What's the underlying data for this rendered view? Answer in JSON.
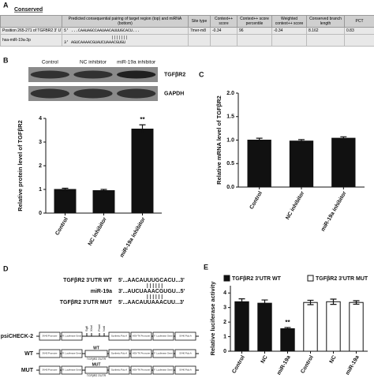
{
  "panel_a": {
    "label": "A",
    "title": "Conserved",
    "table": {
      "header": [
        "Predicted consequential pairing of target region (top) and miRNA (bottom)",
        "Site type",
        "Context++ score",
        "Context++ score percentile",
        "Weighted context++ score",
        "Conserved branch length",
        "PCT"
      ],
      "rows": [
        [
          "Position 265-271 of TGFBR2 3' UTR",
          "5' ...CAAUAGCCAAUAACAUUUGCACU...",
          "7mer-m8",
          "-0.34",
          "96",
          "-0.34",
          "8.162",
          "0.83"
        ],
        [
          "hsa-miR-19a-3p",
          "3' AGUCAAAACGUAUCUAAACGUGU"
        ]
      ],
      "pairing": "|||||||"
    }
  },
  "panel_b_blot": {
    "lanes": [
      "Control",
      "NC inhibitor",
      "miR-19a inhibitor"
    ],
    "rows": [
      "TGFβR2",
      "GAPDH"
    ]
  },
  "chart_data": [
    {
      "type": "bar",
      "panel": "B",
      "ylabel": "Relative protein level of TGFβR2",
      "categories": [
        "Control",
        "NC inhibitor",
        "miR-19a inhibitor"
      ],
      "values": [
        1.0,
        0.95,
        3.55
      ],
      "errors": [
        0.05,
        0.05,
        0.18
      ],
      "color": "#111111",
      "ylim": [
        0,
        4
      ],
      "yticks": [
        0,
        1,
        2,
        3,
        4
      ],
      "annotations": [
        {
          "text": "**",
          "x": "miR-19a inhibitor"
        }
      ]
    },
    {
      "type": "bar",
      "panel": "C",
      "ylabel": "Relative mRNA level of TGFβR2",
      "categories": [
        "Control",
        "NC inhibitor",
        "miR-19a inhibitor"
      ],
      "values": [
        1.0,
        0.98,
        1.04
      ],
      "errors": [
        0.04,
        0.03,
        0.03
      ],
      "color": "#111111",
      "ylim": [
        0,
        2
      ],
      "yticks": [
        {
          "value": 0,
          "label": "0.0"
        },
        {
          "value": 0.5,
          "label": "0.5"
        },
        {
          "value": 1,
          "label": "1.0"
        },
        {
          "value": 1.5,
          "label": "1.5"
        },
        {
          "value": 2,
          "label": "2.0"
        }
      ]
    },
    {
      "type": "bar",
      "panel": "E",
      "ylabel": "Relative luciferase activity",
      "categories": [
        "Control",
        "NC",
        "miR-19a",
        "Control",
        "NC",
        "miR-19a"
      ],
      "series": [
        {
          "name": "TGFβR2 3'UTR WT",
          "color": "#111111",
          "values": [
            3.4,
            3.3,
            1.55,
            null,
            null,
            null
          ],
          "errors": [
            0.2,
            0.22,
            0.08,
            null,
            null,
            null
          ]
        },
        {
          "name": "TGFβR2 3'UTR MUT",
          "color": "#ffffff",
          "values": [
            null,
            null,
            null,
            3.35,
            3.4,
            3.35
          ],
          "errors": [
            null,
            null,
            null,
            0.15,
            0.18,
            0.12
          ]
        }
      ],
      "ylim": [
        0,
        4.5
      ],
      "yticks": [
        0,
        1,
        2,
        3,
        4
      ],
      "annotations": [
        {
          "text": "**",
          "x": "miR-19a"
        }
      ]
    }
  ],
  "panel_d": {
    "label": "D",
    "sequences": [
      {
        "name": "TGFβR2 3'UTR WT",
        "seq": "5'...AACAUUUGCACU...3'"
      },
      {
        "name": "miR-19a",
        "seq": "3'...AUCUAAACGUGU...5'"
      },
      {
        "name": "TGFβR2 3'UTR MUT",
        "seq": "5'...AACAUUAAACUU...3'"
      }
    ],
    "pairing": "||||||",
    "constructs": [
      "psiCHECK-2",
      "WT",
      "MUT"
    ],
    "elements": [
      "SV40 Promoter",
      "R. Luciferase Gene",
      "Synthetic Poly A",
      "HSV-TK Promoter",
      "F. Luciferase Gene",
      "SV40 Poly A"
    ],
    "sites": [
      "SgfI",
      "XhoI",
      "PmeI",
      "NotI"
    ],
    "insert_labels": [
      "WT",
      "MUT"
    ],
    "insert_name": "TGFβR2 3'UTR"
  }
}
